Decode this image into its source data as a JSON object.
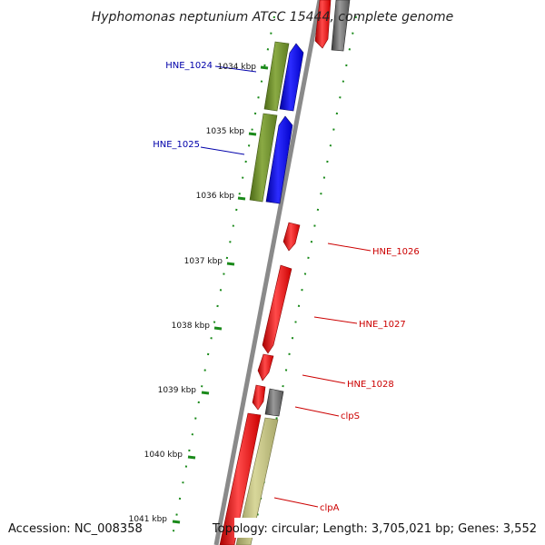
{
  "title": "Hyphomonas neptunium ATCC 15444, complete genome",
  "accession": "Accession: NC_008358",
  "summary": "Topology: circular; Length: 3,705,021 bp; Genes: 3,552",
  "ticks": [
    "1034 kbp",
    "1035 kbp",
    "1036 kbp",
    "1037 kbp",
    "1038 kbp",
    "1039 kbp",
    "1040 kbp",
    "1041 kbp"
  ],
  "colors": {
    "backbone": "#8a8a8a",
    "forward_strand": "#ee1111",
    "reverse_strand": "#3b3b3b",
    "cds_blue": "#1010ee",
    "cds_olive": "#6b8a2a",
    "cds_khaki": "#b9b873",
    "gene_gray": "#707070",
    "tick_green": "#1a8a1a",
    "label_blue": "#0000aa",
    "label_red": "#cc0000"
  },
  "genes": [
    {
      "name": "HNE_1024",
      "color": "#0000aa"
    },
    {
      "name": "HNE_1025",
      "color": "#0000aa"
    },
    {
      "name": "HNE_1026",
      "color": "#cc0000"
    },
    {
      "name": "HNE_1027",
      "color": "#cc0000"
    },
    {
      "name": "HNE_1028",
      "color": "#cc0000"
    },
    {
      "name": "clpS",
      "color": "#cc0000"
    },
    {
      "name": "clpA",
      "color": "#cc0000"
    }
  ]
}
